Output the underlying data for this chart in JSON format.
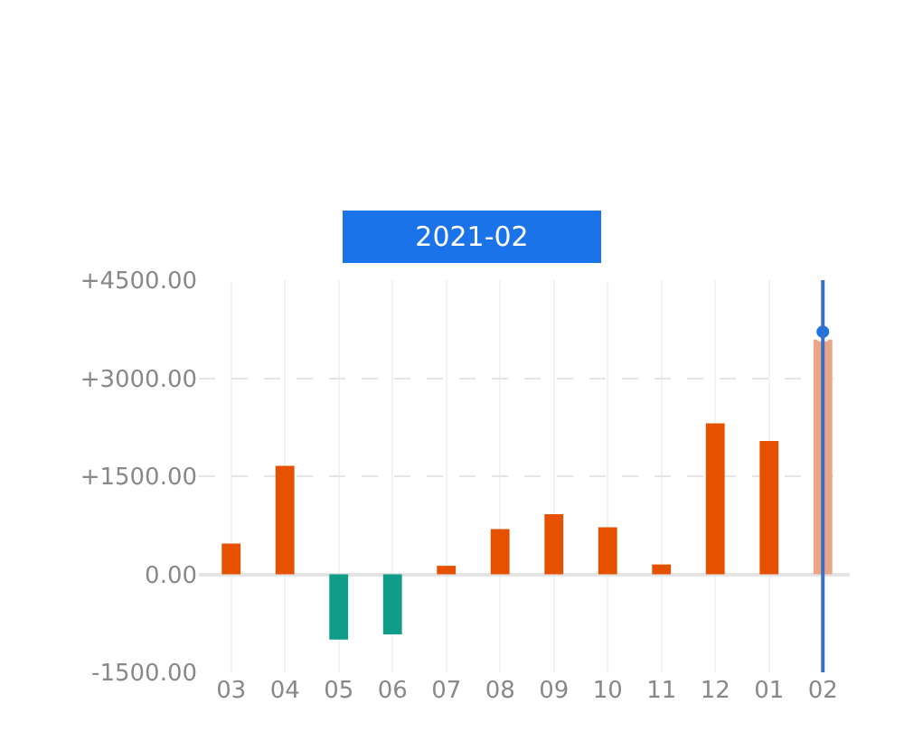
{
  "chart_data": {
    "type": "bar",
    "title": "2021-02",
    "categories": [
      "03",
      "04",
      "05",
      "06",
      "07",
      "08",
      "09",
      "10",
      "11",
      "12",
      "01",
      "02"
    ],
    "series": [
      {
        "values": [
          470,
          1660,
          -1000,
          -920,
          130,
          690,
          920,
          720,
          150,
          2310,
          2040,
          3590
        ],
        "colors": [
          "#e65100",
          "#e65100",
          "#0f9d8a",
          "#0f9d8a",
          "#e65100",
          "#e65100",
          "#e65100",
          "#e65100",
          "#e65100",
          "#e65100",
          "#e65100",
          "#eda58a"
        ]
      },
      {
        "type": "scatter",
        "x": [
          "02"
        ],
        "values": [
          3710
        ],
        "color": "#1a73e8"
      }
    ],
    "ylim": [
      -1500,
      4500
    ],
    "yticks": [
      {
        "value": -1500,
        "label": "-1500.00"
      },
      {
        "value": 0,
        "label": "0.00"
      },
      {
        "value": 1500,
        "label": "+1500.00"
      },
      {
        "value": 3000,
        "label": "+3000.00"
      },
      {
        "value": 4500,
        "label": "+4500.00"
      }
    ],
    "ref_lines": [
      {
        "axis": "x",
        "value": "02",
        "color": "#3a6fc4"
      }
    ],
    "grid": true,
    "marker": "circle"
  }
}
